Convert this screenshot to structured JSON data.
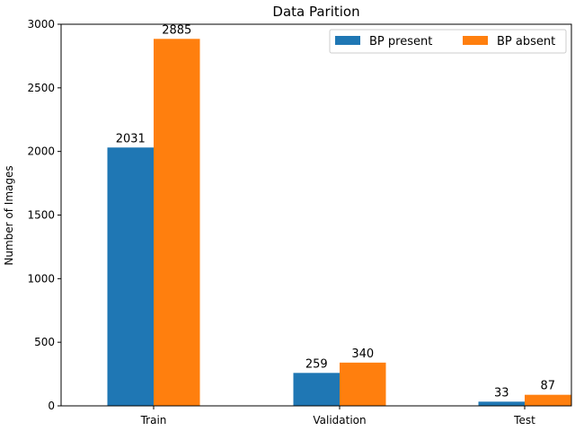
{
  "chart_data": {
    "type": "bar",
    "title": "Data Parition",
    "xlabel": "",
    "ylabel": "Number of Images",
    "categories": [
      "Train",
      "Validation",
      "Test"
    ],
    "series": [
      {
        "name": "BP present",
        "values": [
          2031,
          259,
          33
        ],
        "color": "#1f77b4"
      },
      {
        "name": "BP absent",
        "values": [
          2885,
          340,
          87
        ],
        "color": "#ff7f0e"
      }
    ],
    "ylim": [
      0,
      3000
    ],
    "yticks": [
      "0",
      "500",
      "1000",
      "1500",
      "2000",
      "2500",
      "3000"
    ],
    "grid": false,
    "legend_position": "top-right",
    "legend_columns": 2
  }
}
